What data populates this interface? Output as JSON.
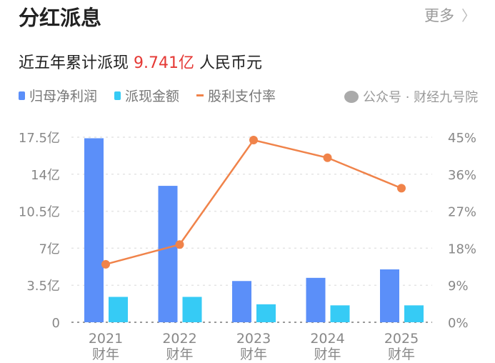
{
  "header": {
    "title": "分红派息",
    "more_label": "更多",
    "more_icon": "chevron-right-icon"
  },
  "summary": {
    "prefix": "近五年累计派现",
    "amount": "9.741亿",
    "suffix": "人民币元"
  },
  "watermark": {
    "text": "公众号 · 财经九号院",
    "icon": "wechat-icon"
  },
  "colors": {
    "net_profit": "#5b8ff9",
    "dividend": "#36cbf5",
    "payout": "#f0834a",
    "highlight": "#e53935"
  },
  "chart_data": {
    "type": "bar",
    "categories": [
      "2021\n财年",
      "2022\n财年",
      "2023\n财年",
      "2024\n财年",
      "2025\n财年"
    ],
    "category_labels": [
      [
        "2021",
        "财年"
      ],
      [
        "2022",
        "财年"
      ],
      [
        "2023",
        "财年"
      ],
      [
        "2024",
        "财年"
      ],
      [
        "2025",
        "财年"
      ]
    ],
    "legend": [
      "归母净利润",
      "派现金额",
      "股利支付率"
    ],
    "legend_position": "top-left",
    "grid": true,
    "y_left": {
      "ticks": [
        "0",
        "3.5亿",
        "7亿",
        "10.5亿",
        "14亿",
        "17.5亿"
      ],
      "range": [
        0,
        17.5
      ],
      "unit": "亿"
    },
    "y_right": {
      "ticks": [
        "0%",
        "9%",
        "18%",
        "27%",
        "36%",
        "45%"
      ],
      "range": [
        0,
        45
      ],
      "unit": "%"
    },
    "series": [
      {
        "name": "归母净利润",
        "type": "bar",
        "axis": "left",
        "values": [
          17.4,
          12.9,
          3.9,
          4.2,
          5.0
        ]
      },
      {
        "name": "派现金额",
        "type": "bar",
        "axis": "left",
        "values": [
          2.4,
          2.4,
          1.7,
          1.6,
          1.6
        ]
      },
      {
        "name": "股利支付率",
        "type": "line",
        "axis": "right",
        "values": [
          14.1,
          18.9,
          44.3,
          40.0,
          32.6
        ]
      }
    ]
  }
}
